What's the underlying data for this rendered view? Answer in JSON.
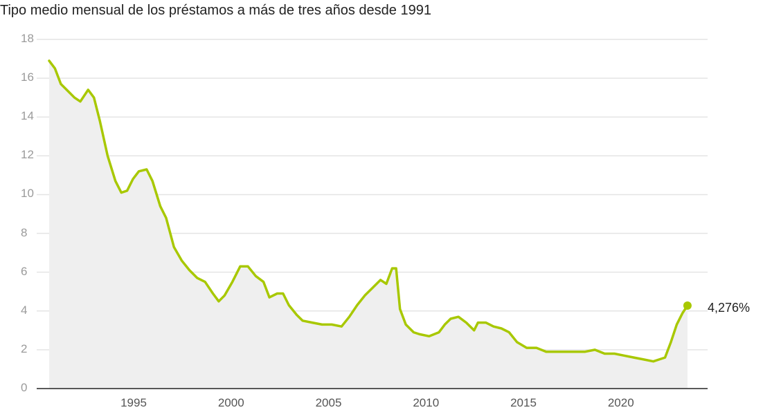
{
  "title": "Tipo medio mensual de los préstamos a más de tres años desde 1991",
  "end_label": "4,276%",
  "colors": {
    "line": "#a8c800",
    "area": "#efefef",
    "grid": "#e4e4e4",
    "axis": "#222222"
  },
  "y_ticks": [
    "0",
    "2",
    "4",
    "6",
    "8",
    "10",
    "12",
    "14",
    "16",
    "18"
  ],
  "x_ticks": [
    "1995",
    "2000",
    "2005",
    "2010",
    "2015",
    "2020"
  ],
  "chart_data": {
    "type": "area",
    "title": "Tipo medio mensual de los préstamos a más de tres años desde 1991",
    "xlabel": "",
    "ylabel": "",
    "ylim": [
      0,
      18
    ],
    "xlim": [
      1991,
      2023.75
    ],
    "grid": true,
    "legend": "none",
    "annotation": "4,276%",
    "x": [
      1991.0,
      1991.3,
      1991.6,
      1992.0,
      1992.3,
      1992.6,
      1993.0,
      1993.3,
      1993.6,
      1994.0,
      1994.4,
      1994.7,
      1995.0,
      1995.3,
      1995.6,
      1996.0,
      1996.3,
      1996.7,
      1997.0,
      1997.4,
      1997.8,
      1998.2,
      1998.6,
      1999.0,
      1999.4,
      1999.7,
      2000.0,
      2000.4,
      2000.8,
      2001.2,
      2001.6,
      2002.0,
      2002.3,
      2002.7,
      2003.0,
      2003.3,
      2003.7,
      2004.0,
      2004.5,
      2005.0,
      2005.5,
      2006.0,
      2006.4,
      2006.8,
      2007.2,
      2007.6,
      2008.0,
      2008.3,
      2008.6,
      2008.8,
      2009.0,
      2009.3,
      2009.7,
      2010.0,
      2010.5,
      2011.0,
      2011.3,
      2011.6,
      2012.0,
      2012.4,
      2012.8,
      2013.0,
      2013.4,
      2013.8,
      2014.2,
      2014.6,
      2015.0,
      2015.5,
      2016.0,
      2016.5,
      2017.0,
      2017.5,
      2018.0,
      2018.5,
      2019.0,
      2019.5,
      2020.0,
      2020.5,
      2021.0,
      2021.5,
      2022.0,
      2022.3,
      2022.6,
      2022.9,
      2023.2,
      2023.5,
      2023.75
    ],
    "values": [
      16.9,
      16.5,
      15.7,
      15.3,
      15.0,
      14.8,
      15.4,
      15.0,
      13.8,
      12.0,
      10.7,
      10.1,
      10.2,
      10.8,
      11.2,
      11.3,
      10.7,
      9.4,
      8.8,
      7.3,
      6.6,
      6.1,
      5.7,
      5.5,
      4.9,
      4.5,
      4.8,
      5.5,
      6.3,
      6.3,
      5.8,
      5.5,
      4.7,
      4.9,
      4.9,
      4.3,
      3.8,
      3.5,
      3.4,
      3.3,
      3.3,
      3.2,
      3.7,
      4.3,
      4.8,
      5.2,
      5.6,
      5.4,
      6.2,
      6.2,
      4.1,
      3.3,
      2.9,
      2.8,
      2.7,
      2.9,
      3.3,
      3.6,
      3.7,
      3.4,
      3.0,
      3.4,
      3.4,
      3.2,
      3.1,
      2.9,
      2.4,
      2.1,
      2.1,
      1.9,
      1.9,
      1.9,
      1.9,
      1.9,
      2.0,
      1.8,
      1.8,
      1.7,
      1.6,
      1.5,
      1.4,
      1.5,
      1.6,
      2.4,
      3.3,
      3.9,
      4.276
    ]
  }
}
